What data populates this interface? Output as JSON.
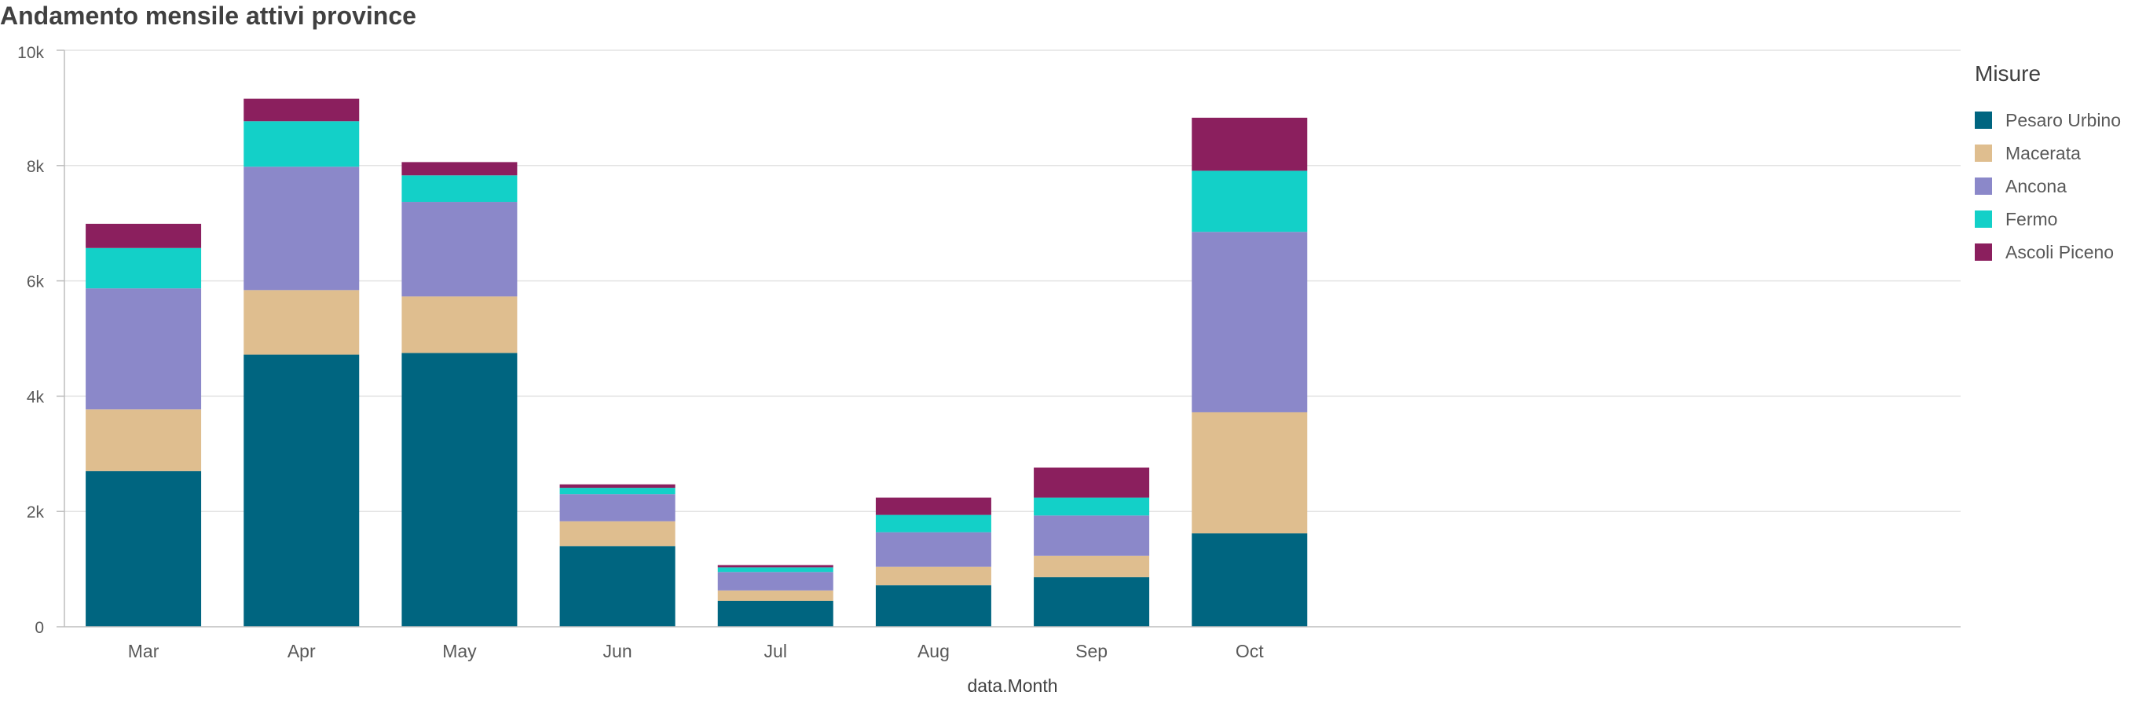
{
  "chart_data": {
    "type": "bar",
    "stacked": true,
    "title": "Andamento mensile attivi province",
    "xlabel": "data.Month",
    "ylabel": "",
    "ylim": [
      0,
      10000
    ],
    "yticks": [
      0,
      2000,
      4000,
      6000,
      8000,
      10000
    ],
    "ytick_labels": [
      "0",
      "2k",
      "4k",
      "6k",
      "8k",
      "10k"
    ],
    "grid": true,
    "categories": [
      "Mar",
      "Apr",
      "May",
      "Jun",
      "Jul",
      "Aug",
      "Sep",
      "Oct"
    ],
    "x_slots": 12,
    "legend": {
      "title": "Misure",
      "position": "right"
    },
    "series": [
      {
        "name": "Pesaro Urbino",
        "color": "#006580",
        "values": [
          2700,
          4720,
          4750,
          1400,
          450,
          720,
          860,
          1620
        ]
      },
      {
        "name": "Macerata",
        "color": "#dfbe8f",
        "values": [
          1070,
          1120,
          980,
          430,
          180,
          320,
          370,
          2100
        ]
      },
      {
        "name": "Ancona",
        "color": "#8b88c9",
        "values": [
          2100,
          2140,
          1640,
          470,
          320,
          600,
          700,
          3130
        ]
      },
      {
        "name": "Fermo",
        "color": "#13d0c8",
        "values": [
          700,
          790,
          460,
          110,
          80,
          300,
          310,
          1060
        ]
      },
      {
        "name": "Ascoli Piceno",
        "color": "#8b1f5e",
        "values": [
          420,
          390,
          230,
          60,
          40,
          300,
          520,
          920
        ]
      }
    ]
  }
}
